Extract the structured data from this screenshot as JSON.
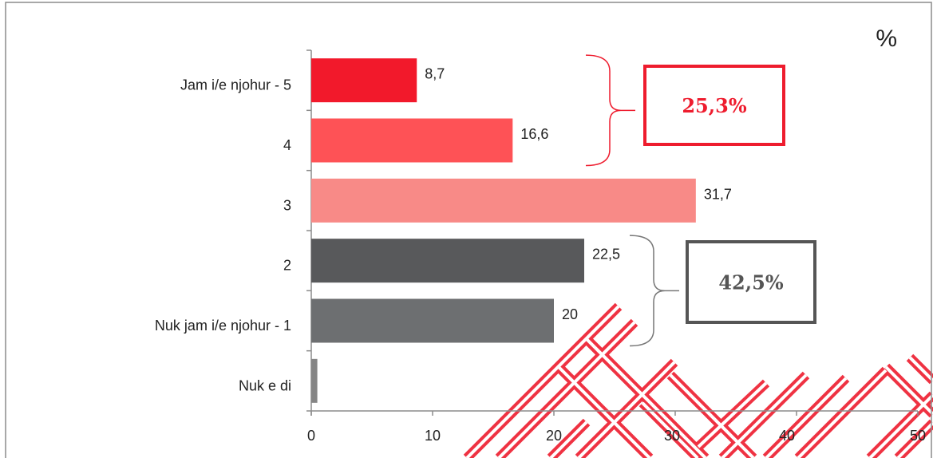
{
  "chart_data": {
    "type": "bar",
    "orientation": "horizontal",
    "categories": [
      "Jam i/e njohur - 5",
      "4",
      "3",
      "2",
      "Nuk jam i/e njohur - 1",
      "Nuk e di"
    ],
    "values": [
      8.7,
      16.6,
      31.7,
      22.5,
      20,
      0.5
    ],
    "value_labels": [
      "8,7",
      "16,6",
      "31,7",
      "22,5",
      "20",
      ""
    ],
    "bar_colors": [
      "#f2192b",
      "#fe5256",
      "#f88a87",
      "#58595b",
      "#6d6f71",
      "#858585"
    ],
    "xlim": [
      0,
      50
    ],
    "x_ticks": [
      0,
      10,
      20,
      30,
      40,
      50
    ],
    "x_tick_labels": [
      "0",
      "10",
      "20",
      "30",
      "40",
      "50"
    ],
    "unit_label": "%",
    "grid": false,
    "legend": "none",
    "annotations": [
      {
        "text": "25,3%",
        "groups": [
          0,
          1
        ],
        "color": "#ee1c2e"
      },
      {
        "text": "42,5%",
        "groups": [
          3,
          4
        ],
        "color": "#555555"
      }
    ]
  },
  "watermark_color": "#ee1c2e"
}
